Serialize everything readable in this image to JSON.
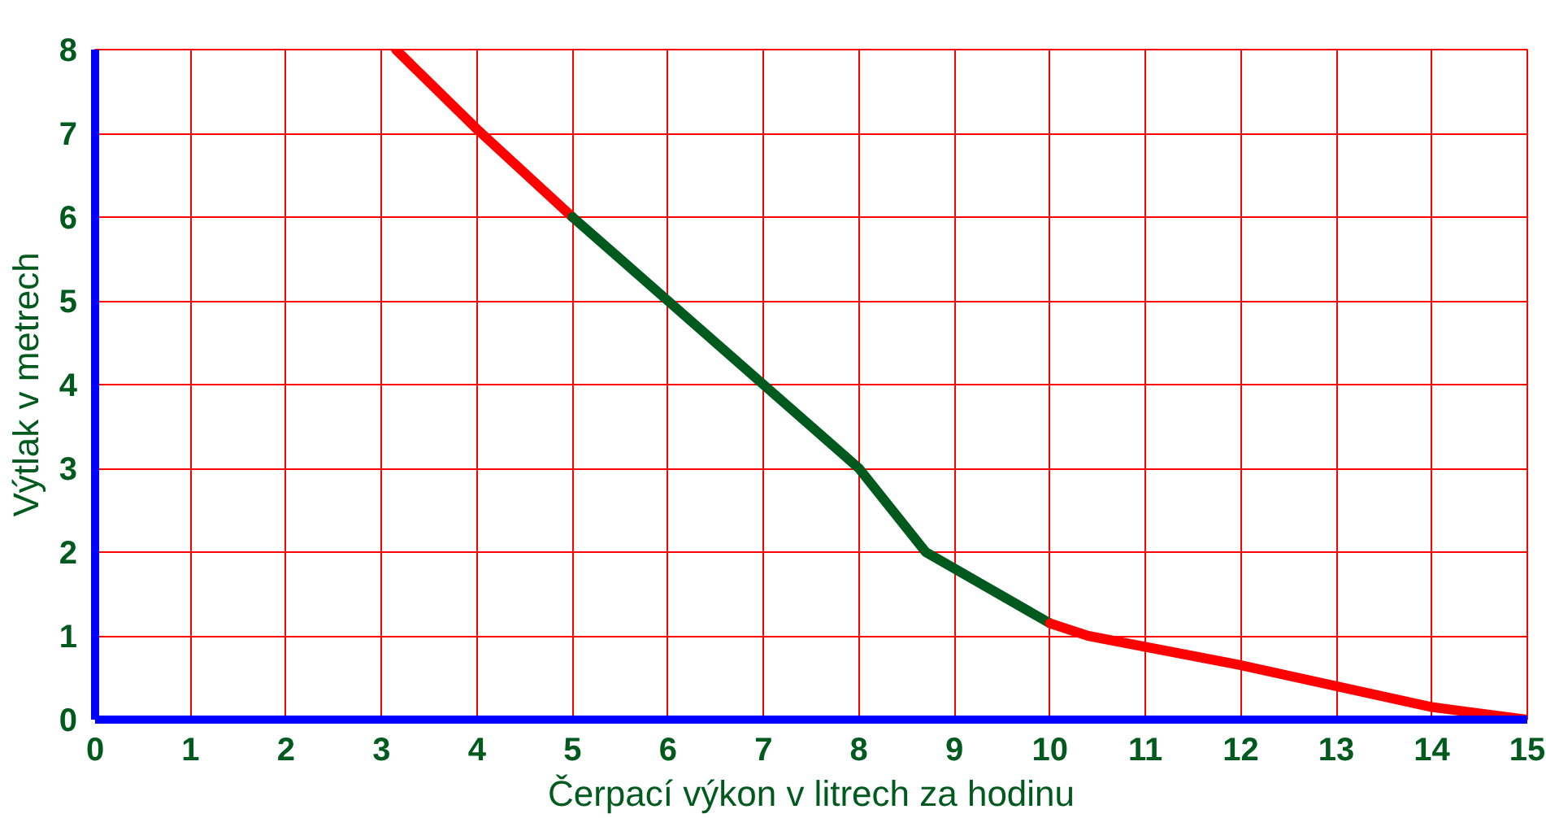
{
  "chart_data": {
    "type": "line",
    "xlabel": "Čerpací výkon v litrech za hodinu",
    "ylabel": "Výtlak v metrech",
    "xlim": [
      0,
      15
    ],
    "ylim": [
      0,
      8
    ],
    "xticks": [
      0,
      1,
      2,
      3,
      4,
      5,
      6,
      7,
      8,
      9,
      10,
      11,
      12,
      13,
      14,
      15
    ],
    "yticks": [
      0,
      1,
      2,
      3,
      4,
      5,
      6,
      7,
      8
    ],
    "grid": true,
    "line_style": "solid",
    "marker": "none",
    "series": [
      {
        "color": "#ff0000",
        "x": [
          3.15,
          4,
          5
        ],
        "values": [
          8,
          7.05,
          6
        ]
      },
      {
        "color": "#005a1e",
        "x": [
          5,
          6,
          7,
          8,
          8.7,
          10
        ],
        "values": [
          6,
          5,
          4,
          3,
          2,
          1.15
        ]
      },
      {
        "color": "#ff0000",
        "x": [
          10,
          10.4,
          12,
          13,
          14,
          15
        ],
        "values": [
          1.15,
          1.0,
          0.65,
          0.4,
          0.15,
          0
        ]
      }
    ]
  }
}
